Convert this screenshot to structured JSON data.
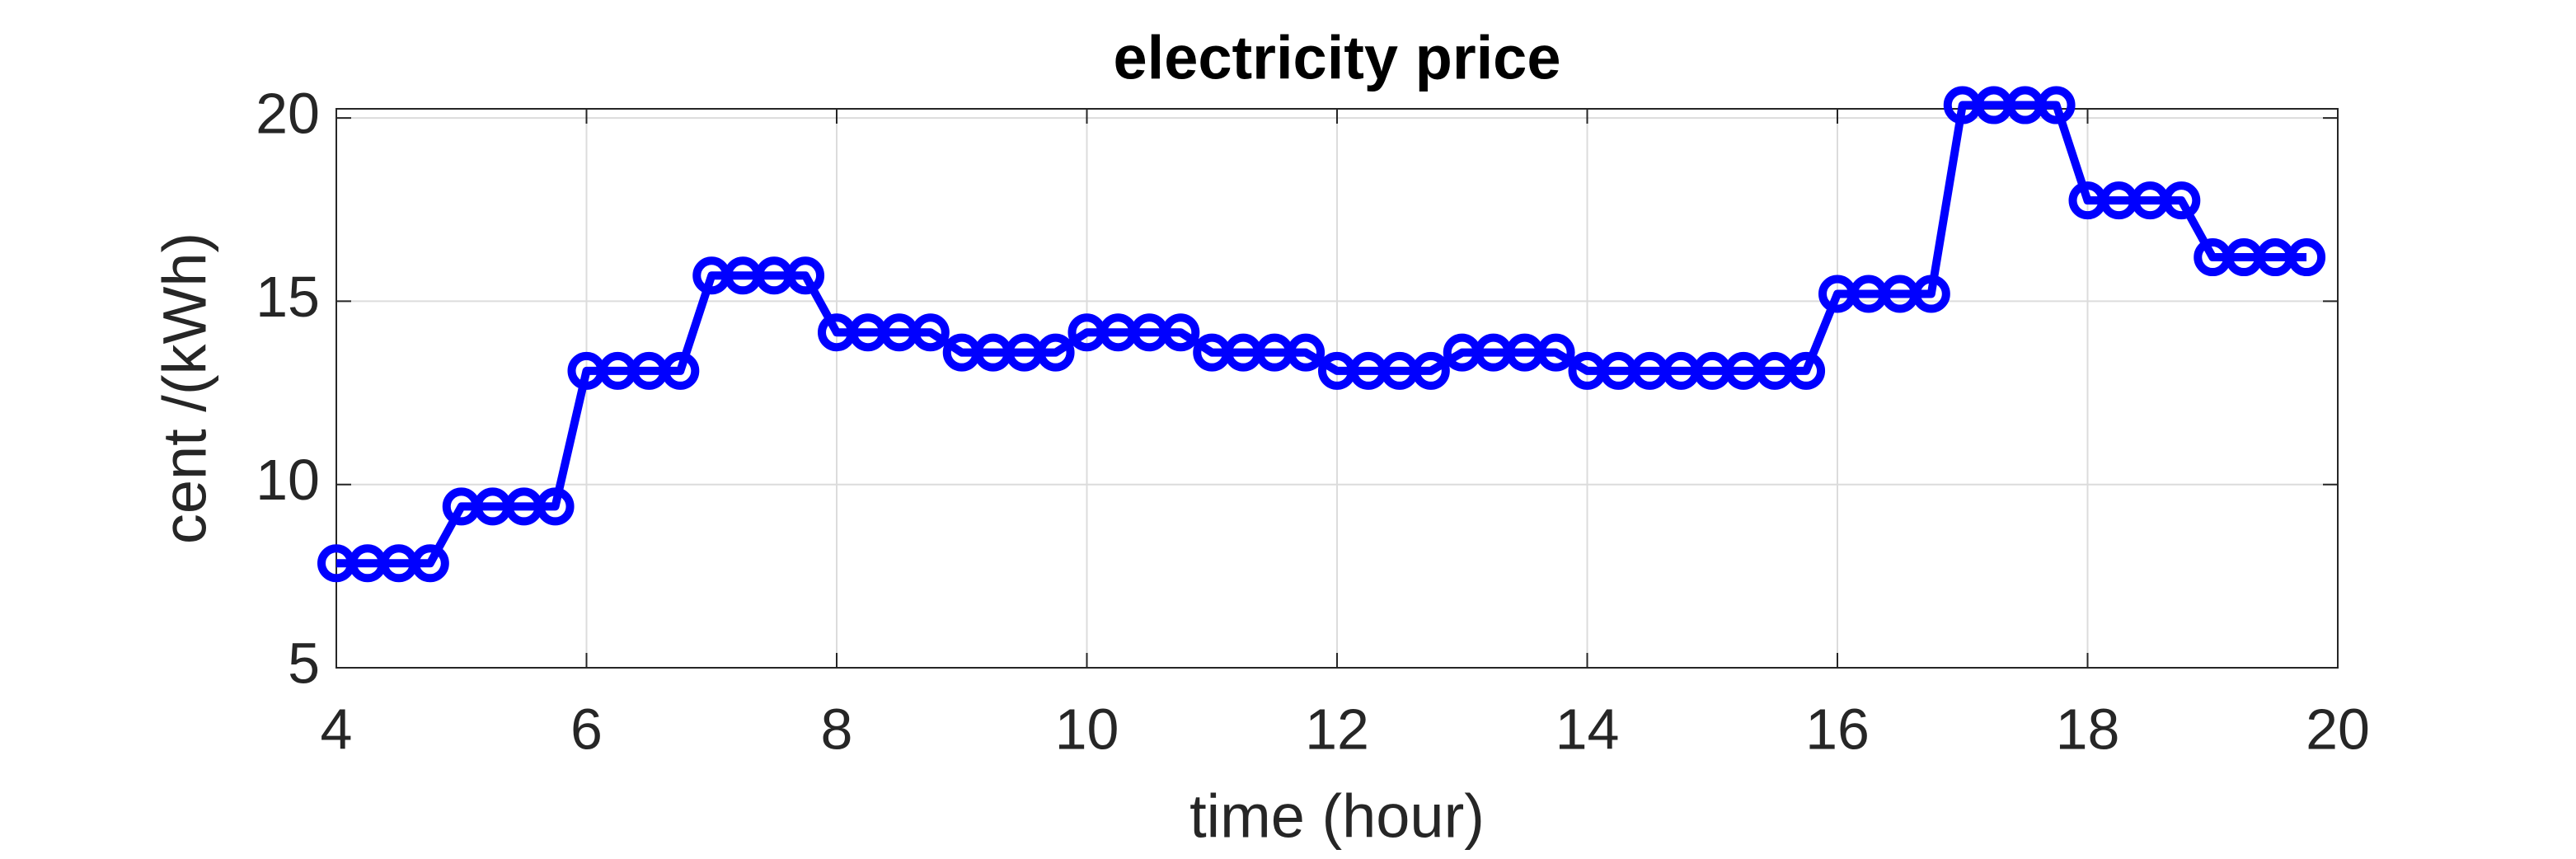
{
  "chart_data": {
    "type": "line",
    "title": "electricity price",
    "x_label": "time (hour)",
    "y_label": "cent /(kWh)",
    "x": [
      4,
      4.25,
      4.5,
      4.75,
      5,
      5.25,
      5.5,
      5.75,
      6,
      6.25,
      6.5,
      6.75,
      7,
      7.25,
      7.5,
      7.75,
      8,
      8.25,
      8.5,
      8.75,
      9,
      9.25,
      9.5,
      9.75,
      10,
      10.25,
      10.5,
      10.75,
      11,
      11.25,
      11.5,
      11.75,
      12,
      12.25,
      12.5,
      12.75,
      13,
      13.25,
      13.5,
      13.75,
      14,
      14.25,
      14.5,
      14.75,
      15,
      15.25,
      15.5,
      15.75,
      16,
      16.25,
      16.5,
      16.75,
      17,
      17.25,
      17.5,
      17.75,
      18,
      18.25,
      18.5,
      18.75,
      19,
      19.25,
      19.5,
      19.75
    ],
    "values": [
      7.85,
      7.85,
      7.85,
      7.85,
      9.4,
      9.4,
      9.4,
      9.4,
      13.1,
      13.1,
      13.1,
      13.1,
      15.7,
      15.7,
      15.7,
      15.7,
      14.15,
      14.15,
      14.15,
      14.15,
      13.6,
      13.6,
      13.6,
      13.6,
      14.15,
      14.15,
      14.15,
      14.15,
      13.6,
      13.6,
      13.6,
      13.6,
      13.1,
      13.1,
      13.1,
      13.1,
      13.6,
      13.6,
      13.6,
      13.6,
      13.1,
      13.1,
      13.1,
      13.1,
      13.1,
      13.1,
      13.1,
      13.1,
      15.2,
      15.2,
      15.2,
      15.2,
      20.35,
      20.35,
      20.35,
      20.35,
      17.75,
      17.75,
      17.75,
      17.75,
      16.2,
      16.2,
      16.2,
      16.2
    ],
    "color": "#0000ff",
    "marker": "o",
    "xlim": [
      4,
      20
    ],
    "xticks": [
      4,
      6,
      8,
      10,
      12,
      14,
      16,
      18,
      20
    ],
    "ylim": [
      5,
      20.25
    ],
    "yticks": [
      5,
      10,
      15,
      20
    ],
    "grid": true
  }
}
